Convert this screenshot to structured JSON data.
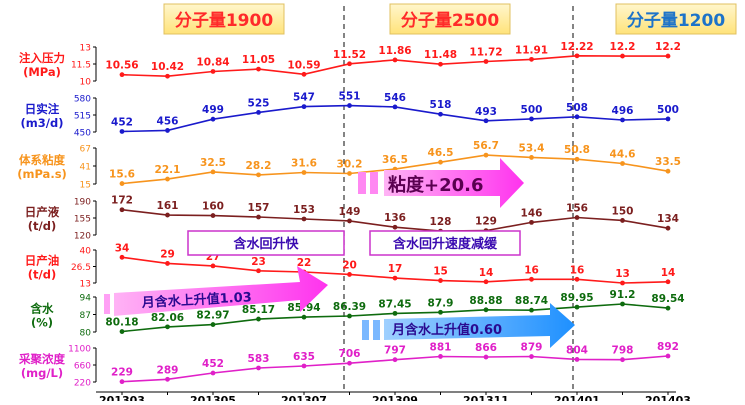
{
  "chart_data": {
    "type": "line",
    "x_labels": [
      "201303",
      "201305",
      "201307",
      "201309",
      "201311",
      "201401",
      "201403"
    ],
    "phases": [
      {
        "label": "分子量1900",
        "color": "#ff2a2a"
      },
      {
        "label": "分子量2500",
        "color": "#ff2a2a"
      },
      {
        "label": "分子量1200",
        "color": "#1d73c9"
      }
    ],
    "panels": [
      {
        "key": "inject",
        "label1": "注入压力",
        "label2": "(MPa)",
        "color": "#ff1a1a",
        "ticks": [
          "13",
          "11.5",
          "10"
        ],
        "ylim": [
          10,
          13
        ],
        "values": [
          10.56,
          10.42,
          10.84,
          11.05,
          10.59,
          11.52,
          11.86,
          11.48,
          11.72,
          11.91,
          12.22,
          12.2,
          12.2
        ]
      },
      {
        "key": "daily_inj",
        "label1": "日实注",
        "label2": "(m3/d)",
        "color": "#1a1acc",
        "ticks": [
          "580",
          "515",
          "450"
        ],
        "ylim": [
          450,
          580
        ],
        "values": [
          452,
          456,
          499,
          525,
          547,
          551,
          546,
          518,
          493,
          500,
          508,
          496,
          500
        ]
      },
      {
        "key": "viscosity",
        "label1": "体系粘度",
        "label2": "(mPa.s)",
        "color": "#f7941d",
        "ticks": [
          "67",
          "41",
          "15"
        ],
        "ylim": [
          15,
          67
        ],
        "values": [
          15.6,
          22.1,
          32.5,
          28.2,
          31.6,
          30.2,
          36.5,
          46.5,
          56.7,
          53.4,
          50.8,
          44.6,
          33.5
        ]
      },
      {
        "key": "liquid",
        "label1": "日产液",
        "label2": "(t/d)",
        "color": "#7b1f1f",
        "ticks": [
          "190",
          "155",
          "120"
        ],
        "ylim": [
          120,
          190
        ],
        "values": [
          172,
          161,
          160,
          157,
          153,
          149,
          136,
          128,
          129,
          146,
          156,
          150,
          134
        ]
      },
      {
        "key": "oil",
        "label1": "日产油",
        "label2": "(t/d)",
        "color": "#ff1a1a",
        "ticks": [
          "40",
          "26.5",
          "13"
        ],
        "ylim": [
          13,
          40
        ],
        "values": [
          34,
          29,
          27,
          23,
          22,
          20,
          17,
          15,
          14,
          16,
          16,
          13,
          14
        ]
      },
      {
        "key": "water",
        "label1": "含水",
        "label2": "(%)",
        "color": "#0e6b0e",
        "ticks": [
          "94",
          "87",
          "80"
        ],
        "ylim": [
          80,
          94
        ],
        "values": [
          80.18,
          82.06,
          82.97,
          85.17,
          85.94,
          86.39,
          87.45,
          87.9,
          88.88,
          88.74,
          89.95,
          91.2,
          89.54
        ]
      },
      {
        "key": "conc",
        "label1": "采聚浓度",
        "label2": "(mg/L)",
        "color": "#e020c8",
        "ticks": [
          "1100",
          "660",
          "220"
        ],
        "ylim": [
          220,
          1100
        ],
        "values": [
          229,
          289,
          452,
          583,
          635,
          706,
          797,
          881,
          866,
          879,
          804,
          798,
          892
        ]
      }
    ],
    "annotations": [
      {
        "text": "粘度+20.6",
        "color": "#ff44ee"
      },
      {
        "text": "含水回升快"
      },
      {
        "text": "含水回升速度减缓"
      },
      {
        "text": "月含水上升值1.03"
      },
      {
        "text": "月含水上升值0.60"
      }
    ],
    "grid": false
  }
}
